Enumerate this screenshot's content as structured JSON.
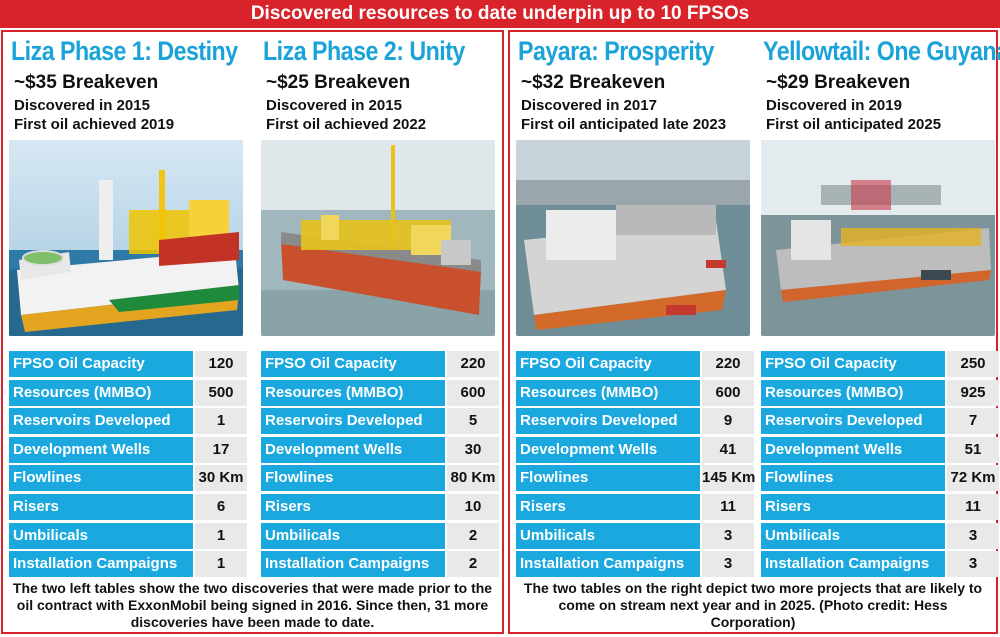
{
  "banner": {
    "title": "Discovered resources to date underpin up to 10 FPSOs"
  },
  "labels": {
    "capacity": "FPSO Oil Capacity",
    "resources": "Resources (MMBO)",
    "reservoirs": "Reservoirs Developed",
    "wells": "Development Wells",
    "flowlines": "Flowlines",
    "risers": "Risers",
    "umbilicals": "Umbilicals",
    "campaigns": "Installation Campaigns"
  },
  "projects": [
    {
      "title": "Liza Phase 1: Destiny",
      "breakeven": "~$35 Breakeven",
      "discovered": "Discovered in 2015",
      "first_oil": "First oil achieved 2019",
      "values": {
        "capacity": "120",
        "resources": "500",
        "reservoirs": "1",
        "wells": "17",
        "flowlines": "30 Km",
        "risers": "6",
        "umbilicals": "1",
        "campaigns": "1"
      }
    },
    {
      "title": "Liza Phase 2: Unity",
      "breakeven": "~$25 Breakeven",
      "discovered": "Discovered in 2015",
      "first_oil": "First oil achieved 2022",
      "values": {
        "capacity": "220",
        "resources": "600",
        "reservoirs": "5",
        "wells": "30",
        "flowlines": "80 Km",
        "risers": "10",
        "umbilicals": "2",
        "campaigns": "2"
      }
    },
    {
      "title": "Payara: Prosperity",
      "breakeven": "~$32 Breakeven",
      "discovered": "Discovered in 2017",
      "first_oil": "First oil anticipated late 2023",
      "values": {
        "capacity": "220",
        "resources": "600",
        "reservoirs": "9",
        "wells": "41",
        "flowlines": "145 Km",
        "risers": "11",
        "umbilicals": "3",
        "campaigns": "3"
      }
    },
    {
      "title": "Yellowtail: One Guyana",
      "breakeven": "~$29 Breakeven",
      "discovered": "Discovered in 2019",
      "first_oil": "First oil anticipated 2025",
      "values": {
        "capacity": "250",
        "resources": "925",
        "reservoirs": "7",
        "wells": "51",
        "flowlines": "72 Km",
        "risers": "11",
        "umbilicals": "3",
        "campaigns": "3"
      }
    }
  ],
  "captions": {
    "left": "The two left tables show the two discoveries that were made prior to the oil contract with ExxonMobil being signed in 2016. Since then, 31 more discoveries have been made to date.",
    "right": "The two tables on the right depict two more projects that are likely to come on stream next year and in 2025. (Photo credit: Hess Corporation)"
  },
  "colors": {
    "accent_red": "#d8232a",
    "title_blue": "#1aa3d9",
    "label_blue": "#1aa8df",
    "value_gray": "#e9e9e9"
  }
}
